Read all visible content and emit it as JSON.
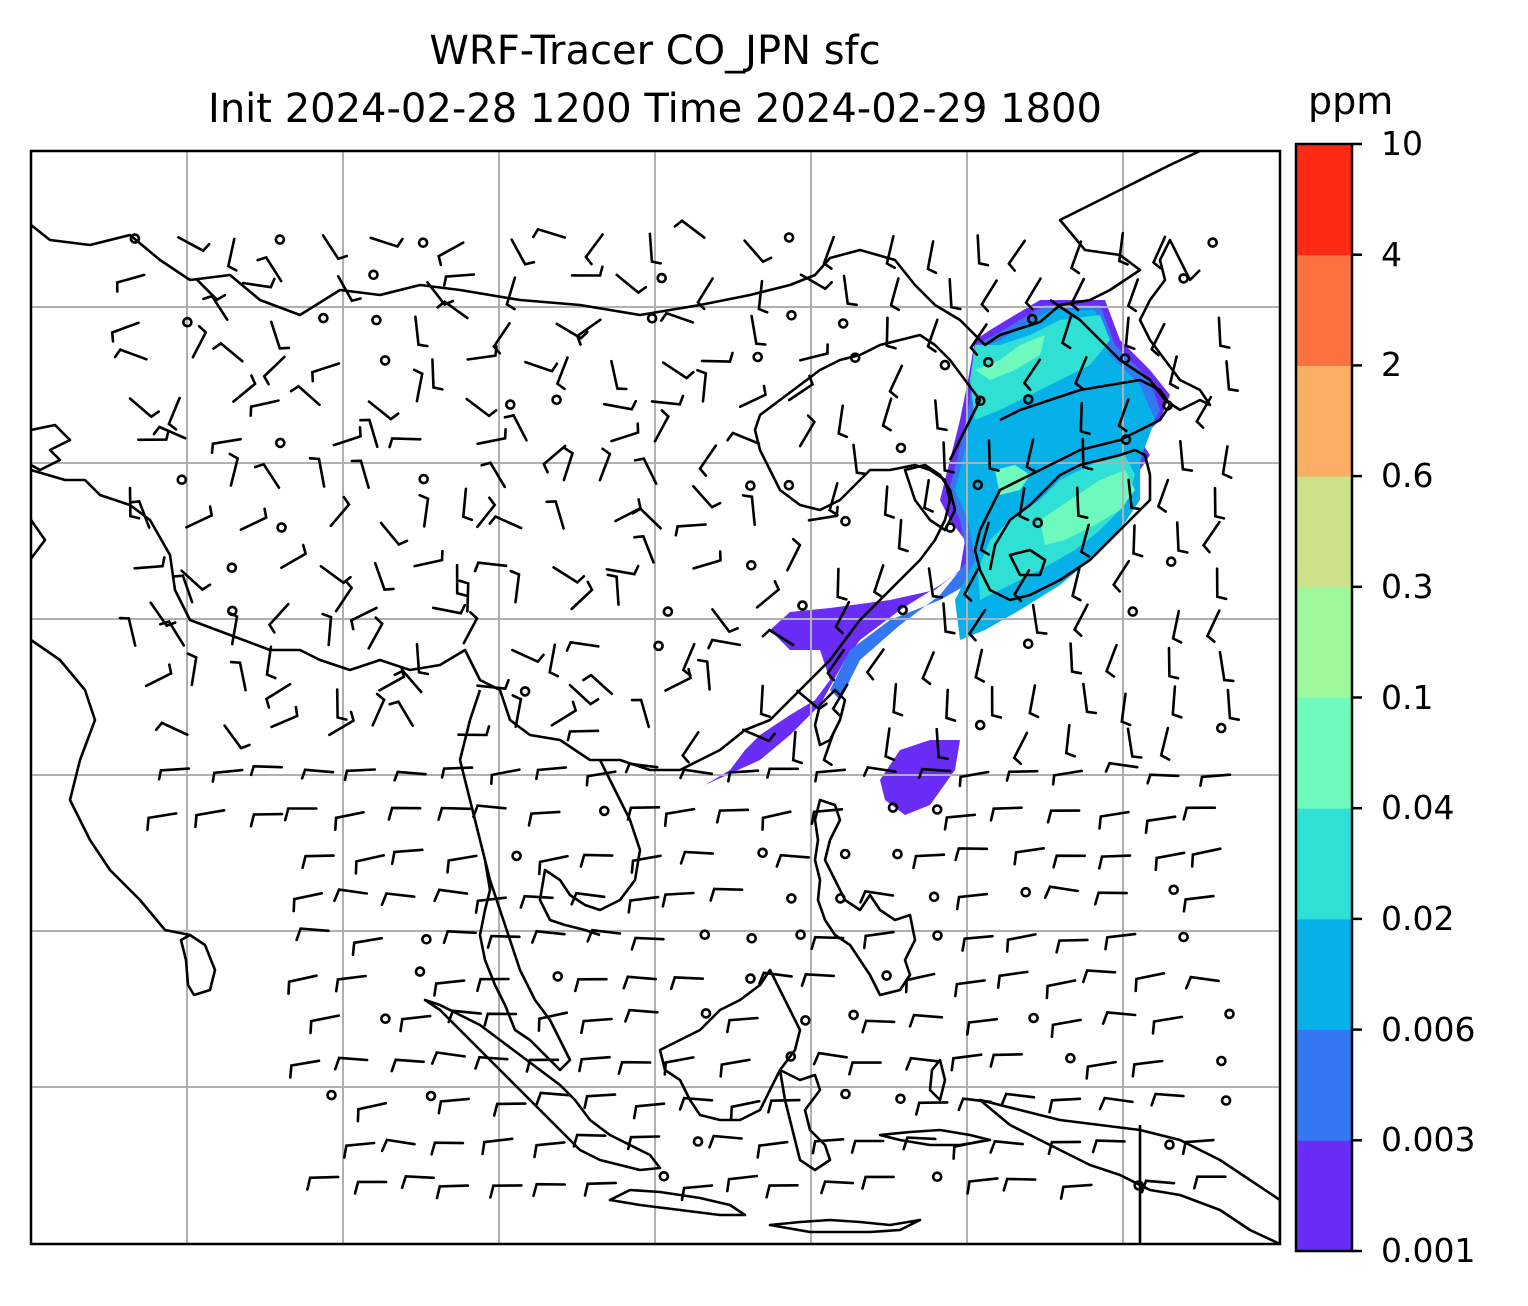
{
  "title": {
    "line1": "WRF-Tracer CO_JPN sfc",
    "line2": "Init 2024-02-28 1200 Time 2024-02-29 1800"
  },
  "colorbar": {
    "unit": "ppm",
    "ticks": [
      "0.001",
      "0.003",
      "0.006",
      "0.02",
      "0.04",
      "0.1",
      "0.3",
      "0.6",
      "2",
      "4",
      "10"
    ],
    "colors": [
      "#6a2cf7",
      "#3377f2",
      "#06b1ea",
      "#30e0d4",
      "#6ef9bd",
      "#9ef79a",
      "#cde08a",
      "#fbae64",
      "#fd7140",
      "#fe2a16"
    ]
  },
  "map": {
    "gridlines": true,
    "coastline_color": "#000000",
    "gridline_color": "#b0b0b0",
    "wind_barbs": true,
    "tracer_plume": "CO plume over Japan, Korea, East China Sea and Taiwan"
  }
}
